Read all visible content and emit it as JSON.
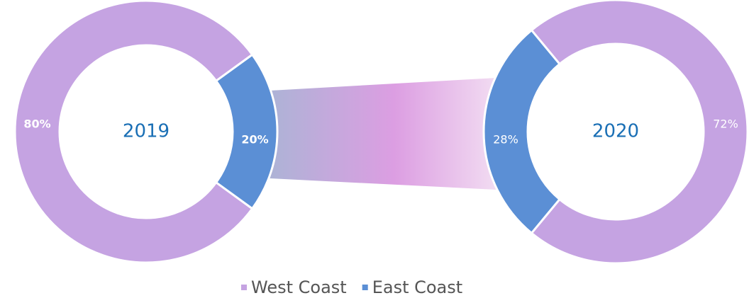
{
  "chart_data": [
    {
      "type": "pie",
      "title": "2019",
      "categories": [
        "West Coast",
        "East Coast"
      ],
      "values": [
        80,
        20
      ],
      "value_labels": [
        "80%",
        "20%"
      ],
      "colors": [
        "#c5a3e2",
        "#5b8fd5"
      ]
    },
    {
      "type": "pie",
      "title": "2020",
      "categories": [
        "West Coast",
        "East Coast"
      ],
      "values": [
        72,
        28
      ],
      "value_labels": [
        "72%",
        "28%"
      ],
      "colors": [
        "#c5a3e2",
        "#5b8fd5"
      ]
    }
  ]
}
